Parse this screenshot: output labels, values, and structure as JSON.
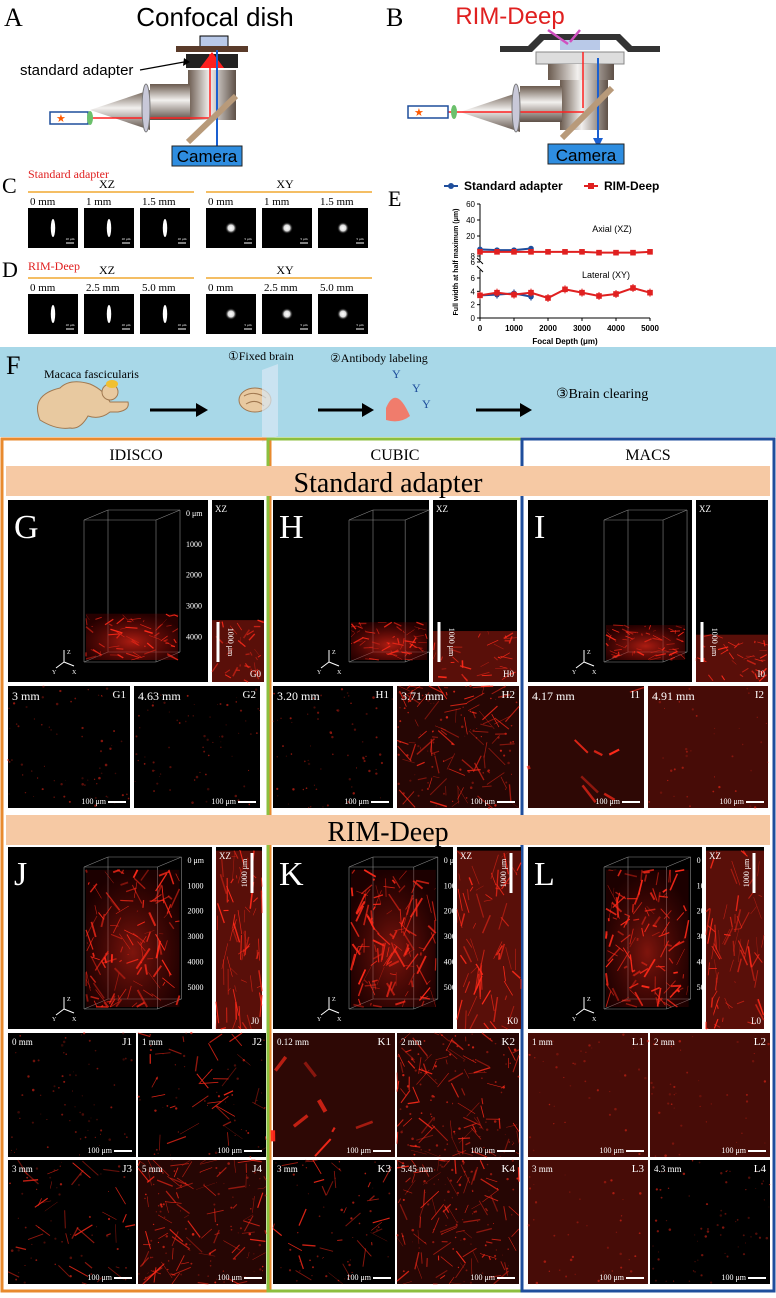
{
  "panel_letters": {
    "a": "A",
    "b": "B",
    "c": "C",
    "d": "D",
    "e": "E",
    "f": "F",
    "g": "G",
    "h": "H",
    "i": "I",
    "j": "J",
    "k": "K",
    "l": "L"
  },
  "panel_a": {
    "title": "Confocal dish",
    "adapter_label": "standard adapter",
    "camera_label": "Camera"
  },
  "panel_b": {
    "title": "RIM-Deep",
    "camera_label": "Camera"
  },
  "panel_c": {
    "method": "Standard adapter",
    "xz_label": "XZ",
    "xy_label": "XY",
    "xz_depths": [
      "0 mm",
      "1 mm",
      "1.5 mm"
    ],
    "xy_depths": [
      "0 mm",
      "1 mm",
      "1.5 mm"
    ],
    "scale_xz": "10 μm",
    "scale_xy": "5 μm"
  },
  "panel_d": {
    "method": "RIM-Deep",
    "xz_label": "XZ",
    "xy_label": "XY",
    "xz_depths": [
      "0 mm",
      "2.5 mm",
      "5.0 mm"
    ],
    "xy_depths": [
      "0 mm",
      "2.5 mm",
      "5.0 mm"
    ],
    "scale_xz": "10 μm",
    "scale_xy": "5 μm"
  },
  "chart_data": {
    "type": "line",
    "title": "",
    "xlabel": "Focal Depth (μm)",
    "ylabel": "Full width at half maximum (μm)",
    "xlim": [
      0,
      5000
    ],
    "x_ticks": [
      "0",
      "1000",
      "2000",
      "3000",
      "4000",
      "5000"
    ],
    "upper_ticks": [
      "6",
      "8",
      "20",
      "40",
      "60"
    ],
    "lower_ticks": [
      "0",
      "2",
      "4",
      "6"
    ],
    "legend_position": "top",
    "annotations": {
      "axial": "Axial (XZ)",
      "lateral": "Lateral (XY)"
    },
    "series": [
      {
        "name": "Standard adapter",
        "color": "#1f4e9c",
        "group": "axial",
        "x": [
          0,
          500,
          1000,
          1500
        ],
        "y": [
          12,
          11.5,
          11.5,
          12.5
        ]
      },
      {
        "name": "Standard adapter",
        "color": "#1f4e9c",
        "group": "lateral",
        "x": [
          0,
          500,
          1000,
          1500
        ],
        "y": [
          3.4,
          3.5,
          3.7,
          3.2
        ]
      },
      {
        "name": "RIM-Deep",
        "color": "#e02020",
        "group": "axial",
        "x": [
          0,
          500,
          1000,
          1500,
          2000,
          2500,
          3000,
          3500,
          4000,
          4500,
          5000
        ],
        "y": [
          10.5,
          10.5,
          10.5,
          10.5,
          10.5,
          10.5,
          10.5,
          10,
          10,
          10,
          10.5
        ]
      },
      {
        "name": "RIM-Deep",
        "color": "#e02020",
        "group": "lateral",
        "x": [
          0,
          500,
          1000,
          1500,
          2000,
          2500,
          3000,
          3500,
          4000,
          4500,
          5000
        ],
        "y": [
          3.4,
          3.8,
          3.5,
          3.8,
          3.0,
          4.3,
          3.8,
          3.3,
          3.6,
          4.5,
          3.8
        ]
      }
    ]
  },
  "panel_f": {
    "step0": "Macaca fascicularis",
    "step1": "①Fixed brain",
    "step2": "②Antibody labeling",
    "step3": "③Brain clearing"
  },
  "columns": [
    "IDISCO",
    "CUBIC",
    "MACS"
  ],
  "section_standard": "Standard adapter",
  "section_rim": "RIM-Deep",
  "std_3d": [
    {
      "letter": "G",
      "depth_ticks": [
        "0 μm",
        "1000",
        "2000",
        "3000",
        "4000"
      ],
      "xz": "XZ",
      "scale": "1000 μm",
      "sub": "G0"
    },
    {
      "letter": "H",
      "depth_ticks": [
        "0 μm",
        "1000",
        "2000",
        "3000"
      ],
      "xz": "XZ",
      "scale": "1000 μm",
      "sub": "H0"
    },
    {
      "letter": "I",
      "depth_ticks": [
        "0 μm",
        "1000",
        "2000",
        "3000",
        "4000"
      ],
      "xz": "XZ",
      "scale": "1000 μm",
      "sub": "I0"
    }
  ],
  "std_slices": [
    {
      "depth": "3 mm",
      "label": "G1",
      "scale": "100 μm"
    },
    {
      "depth": "4.63 mm",
      "label": "G2",
      "scale": "100 μm"
    },
    {
      "depth": "3.20 mm",
      "label": "H1",
      "scale": "100 μm"
    },
    {
      "depth": "3.71 mm",
      "label": "H2",
      "scale": "100 μm"
    },
    {
      "depth": "4.17 mm",
      "label": "I1",
      "scale": "100 μm"
    },
    {
      "depth": "4.91 mm",
      "label": "I2",
      "scale": "100 μm"
    }
  ],
  "rim_3d": [
    {
      "letter": "J",
      "depth_ticks": [
        "0 μm",
        "1000",
        "2000",
        "3000",
        "4000",
        "5000"
      ],
      "xz": "XZ",
      "scale": "1000 μm",
      "sub": "J0"
    },
    {
      "letter": "K",
      "depth_ticks": [
        "0 μm",
        "1000",
        "2000",
        "3000",
        "4000",
        "5000"
      ],
      "xz": "XZ",
      "scale": "1000 μm",
      "sub": "K0"
    },
    {
      "letter": "L",
      "depth_ticks": [
        "0 μm",
        "1000",
        "2000",
        "3000",
        "4000",
        "5000"
      ],
      "xz": "XZ",
      "scale": "1000 μm",
      "sub": "L0"
    }
  ],
  "rim_slices": [
    {
      "depth": "0 mm",
      "label": "J1",
      "scale": "100 μm"
    },
    {
      "depth": "1 mm",
      "label": "J2",
      "scale": "100 μm"
    },
    {
      "depth": "3 mm",
      "label": "J3",
      "scale": "100 μm"
    },
    {
      "depth": "5 mm",
      "label": "J4",
      "scale": "100 μm"
    },
    {
      "depth": "0.12 mm",
      "label": "K1",
      "scale": "100 μm"
    },
    {
      "depth": "2 mm",
      "label": "K2",
      "scale": "100 μm"
    },
    {
      "depth": "3 mm",
      "label": "K3",
      "scale": "100 μm"
    },
    {
      "depth": "5.45 mm",
      "label": "K4",
      "scale": "100 μm"
    },
    {
      "depth": "1 mm",
      "label": "L1",
      "scale": "100 μm"
    },
    {
      "depth": "2 mm",
      "label": "L2",
      "scale": "100 μm"
    },
    {
      "depth": "3 mm",
      "label": "L3",
      "scale": "100 μm"
    },
    {
      "depth": "4.3 mm",
      "label": "L4",
      "scale": "100 μm"
    }
  ],
  "axis_labels": {
    "z": "Z",
    "y": "Y",
    "x": "X"
  },
  "colors": {
    "blue_frame": "#1f4e9c",
    "green_frame": "#8cbf3f",
    "orange_frame": "#e88a2e",
    "banner": "#f6c9a4",
    "light_blue": "#a8d8e8",
    "red_signal": "#ff2a1a",
    "camera": "#2e8de0"
  }
}
